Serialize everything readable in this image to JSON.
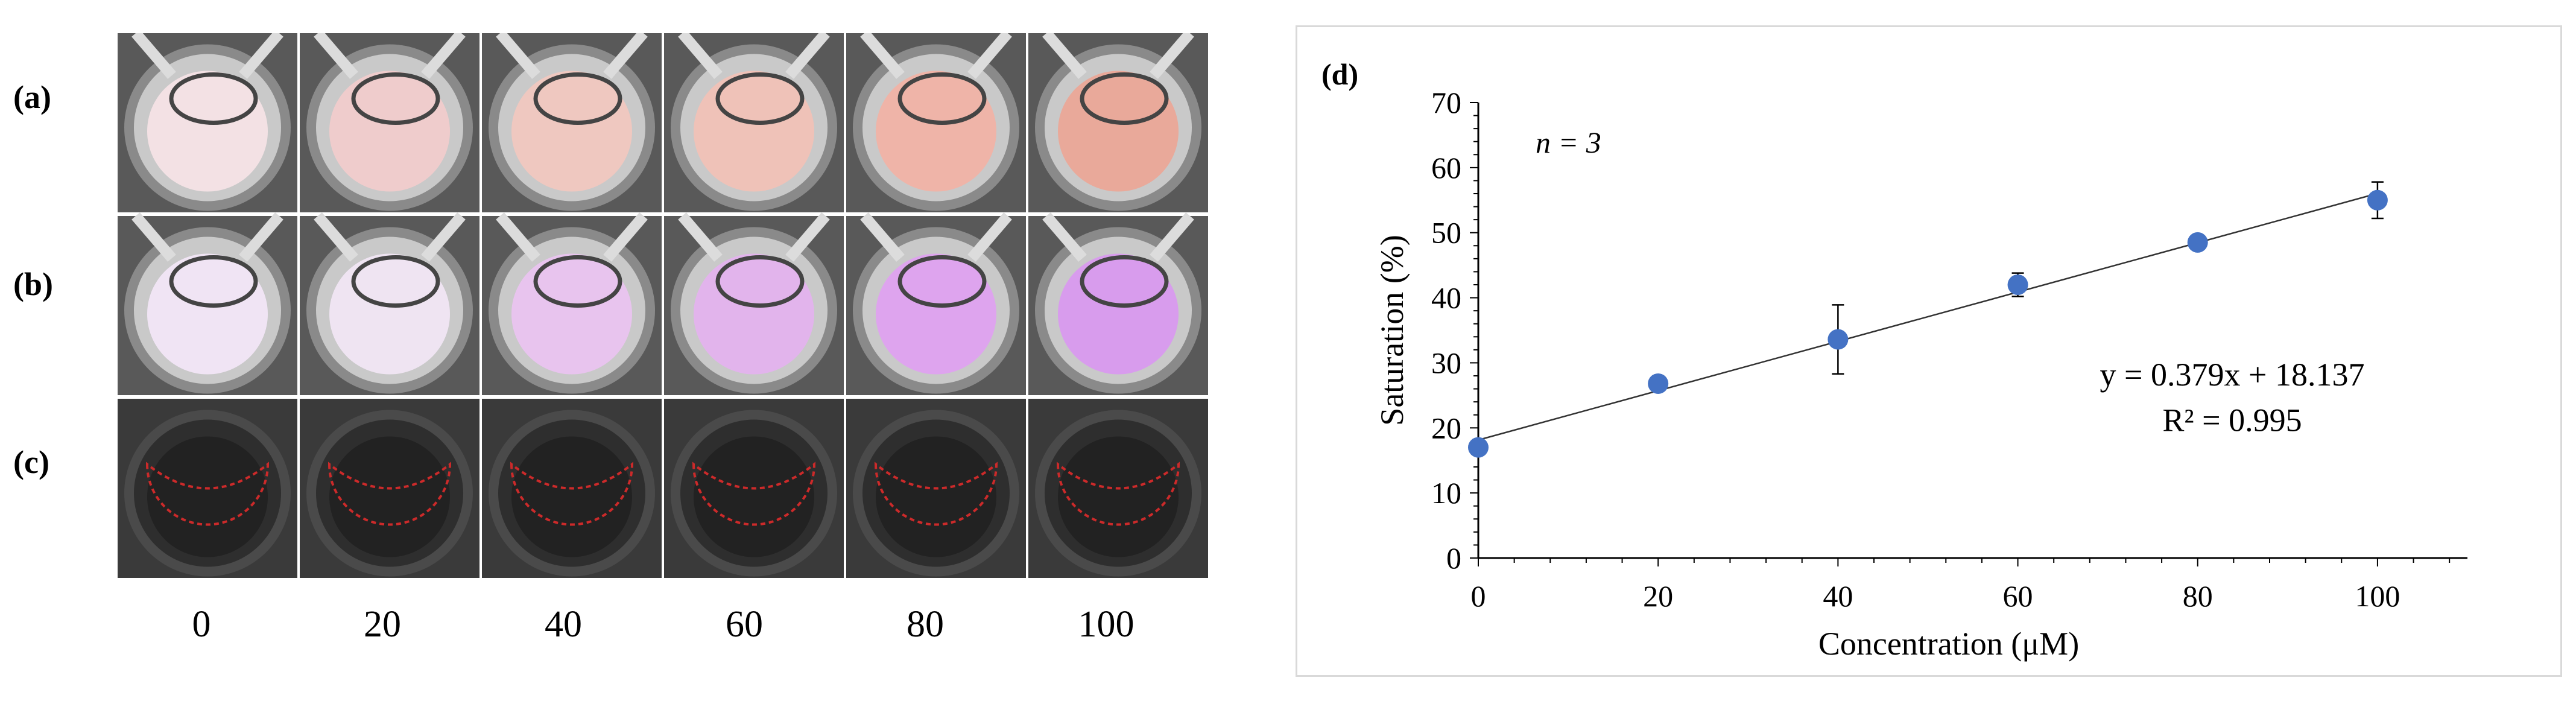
{
  "row_labels": [
    "(a)",
    "(b)",
    "(c)"
  ],
  "concentration_labels": [
    "0",
    "20",
    "40",
    "60",
    "80",
    "100"
  ],
  "panels": {
    "a": {
      "liquid_colors": [
        "#f3e1e4",
        "#efcccc",
        "#efc8c0",
        "#efc2b8",
        "#efb4a8",
        "#e9a99a"
      ]
    },
    "b": {
      "liquid_colors": [
        "#f0e4f4",
        "#efe4f2",
        "#e8c4ee",
        "#e2b4ec",
        "#dea4ee",
        "#d89ced"
      ]
    },
    "c": {
      "outline_color": "#cc2a2a"
    }
  },
  "chart_data": {
    "type": "scatter",
    "panel_label": "(d)",
    "annotation": "n = 3",
    "x": [
      0,
      20,
      40,
      60,
      80,
      100
    ],
    "y": [
      17.0,
      26.8,
      33.6,
      42.0,
      48.5,
      55.0
    ],
    "error": [
      0.6,
      0.8,
      5.3,
      1.8,
      1.0,
      2.8
    ],
    "trendline": {
      "slope": 0.379,
      "intercept": 18.137
    },
    "equation": "y = 0.379x + 18.137",
    "r_squared": "R² = 0.995",
    "xlabel": "Concentration (μM)",
    "ylabel": "Saturation (%)",
    "xlim": [
      0,
      110
    ],
    "ylim": [
      0,
      70
    ],
    "x_ticks": [
      0,
      20,
      40,
      60,
      80,
      100
    ],
    "y_ticks": [
      0,
      10,
      20,
      30,
      40,
      50,
      60,
      70
    ],
    "marker_color": "#4472c4",
    "line_color": "#333333",
    "grid": false
  }
}
